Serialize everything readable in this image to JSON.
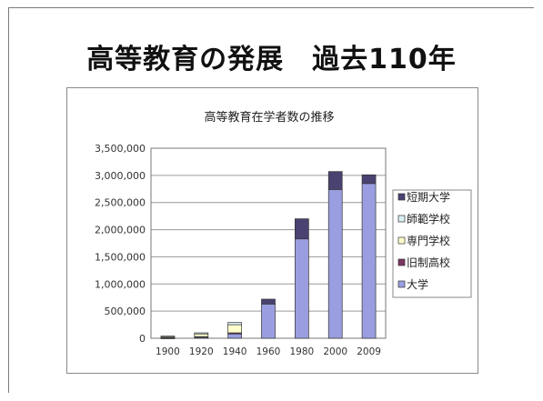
{
  "slide": {
    "title": "高等教育の発展　過去110年"
  },
  "chart_data": {
    "type": "bar",
    "stacked": true,
    "title": "高等教育在学者数の推移",
    "xlabel": "",
    "ylabel": "",
    "categories": [
      "1900",
      "1920",
      "1940",
      "1960",
      "1980",
      "2000",
      "2009"
    ],
    "ylim": [
      0,
      3500000
    ],
    "yticks": [
      0,
      500000,
      1000000,
      1500000,
      2000000,
      2500000,
      3000000,
      3500000
    ],
    "ytick_labels": [
      "0",
      "500,000",
      "1,000,000",
      "1,500,000",
      "2,000,000",
      "2,500,000",
      "3,000,000",
      "3,500,000"
    ],
    "legend_position": "right",
    "series": [
      {
        "name": "大学",
        "color": "#9a9ee0",
        "values": [
          5000,
          20000,
          80000,
          630000,
          1830000,
          2740000,
          2850000
        ]
      },
      {
        "name": "旧制高校",
        "color": "#7a3560",
        "values": [
          5000,
          10000,
          20000,
          0,
          0,
          0,
          0
        ]
      },
      {
        "name": "専門学校",
        "color": "#ffffcc",
        "values": [
          20000,
          50000,
          150000,
          0,
          0,
          0,
          0
        ]
      },
      {
        "name": "師範学校",
        "color": "#d9f0f5",
        "values": [
          10000,
          20000,
          40000,
          0,
          0,
          0,
          0
        ]
      },
      {
        "name": "短期大学",
        "color": "#4a4270",
        "values": [
          0,
          0,
          0,
          90000,
          370000,
          330000,
          160000
        ]
      }
    ]
  }
}
